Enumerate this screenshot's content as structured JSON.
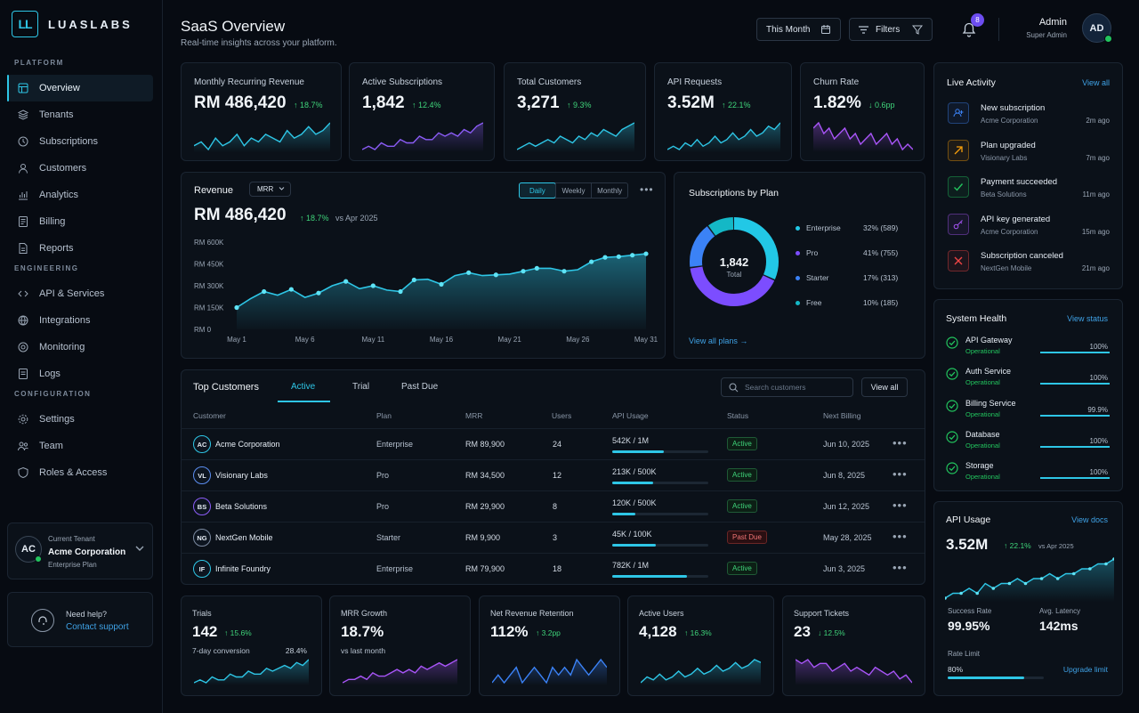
{
  "brand": {
    "mark": "LL",
    "name": "LUASLABS"
  },
  "sidebar": {
    "sections": [
      {
        "label": "PLATFORM",
        "items": [
          {
            "label": "Overview",
            "icon": "overview-icon",
            "active": true
          },
          {
            "label": "Tenants",
            "icon": "layers-icon"
          },
          {
            "label": "Subscriptions",
            "icon": "subscriptions-icon"
          },
          {
            "label": "Customers",
            "icon": "user-icon"
          },
          {
            "label": "Analytics",
            "icon": "analytics-icon"
          },
          {
            "label": "Billing",
            "icon": "billing-icon"
          },
          {
            "label": "Reports",
            "icon": "reports-icon"
          }
        ]
      },
      {
        "label": "ENGINEERING",
        "items": [
          {
            "label": "API & Services",
            "icon": "api-icon"
          },
          {
            "label": "Integrations",
            "icon": "integrations-icon"
          },
          {
            "label": "Monitoring",
            "icon": "monitoring-icon"
          },
          {
            "label": "Logs",
            "icon": "logs-icon"
          }
        ]
      },
      {
        "label": "CONFIGURATION",
        "items": [
          {
            "label": "Settings",
            "icon": "gear-icon"
          },
          {
            "label": "Team",
            "icon": "team-icon"
          },
          {
            "label": "Roles & Access",
            "icon": "shield-icon"
          }
        ]
      }
    ],
    "tenant": {
      "caption": "Current Tenant",
      "initials": "AC",
      "name": "Acme Corporation",
      "plan": "Enterprise Plan"
    },
    "help": {
      "question": "Need help?",
      "link": "Contact support"
    }
  },
  "header": {
    "title": "SaaS Overview",
    "subtitle": "Real-time insights across your platform.",
    "period": "This Month",
    "filters": "Filters",
    "notifications": "8",
    "user": {
      "name": "Admin",
      "role": "Super Admin",
      "initials": "AD"
    }
  },
  "kpis": [
    {
      "title": "Monthly Recurring Revenue",
      "value": "RM 486,420",
      "delta": "18.7%",
      "dir": "up",
      "color": "#2ec6e6",
      "spark": [
        5,
        6,
        4,
        7,
        5,
        6,
        8,
        5,
        7,
        6,
        8,
        7,
        6,
        9,
        7,
        8,
        10,
        8,
        9,
        11
      ]
    },
    {
      "title": "Active Subscriptions",
      "value": "1,842",
      "delta": "12.4%",
      "dir": "up",
      "color": "#8b5cf6",
      "spark": [
        4,
        5,
        4,
        6,
        5,
        5,
        7,
        6,
        6,
        8,
        7,
        7,
        9,
        8,
        9,
        8,
        10,
        9,
        11,
        12
      ]
    },
    {
      "title": "Total Customers",
      "value": "3,271",
      "delta": "9.3%",
      "dir": "up",
      "color": "#2ec6e6",
      "spark": [
        4,
        5,
        6,
        5,
        6,
        7,
        6,
        8,
        7,
        6,
        8,
        7,
        9,
        8,
        10,
        9,
        8,
        10,
        11,
        12
      ]
    },
    {
      "title": "API Requests",
      "value": "3.52M",
      "delta": "22.1%",
      "dir": "up",
      "color": "#2ec6e6",
      "spark": [
        5,
        6,
        5,
        7,
        6,
        8,
        6,
        7,
        9,
        7,
        8,
        10,
        8,
        9,
        11,
        9,
        10,
        12,
        11,
        13
      ]
    },
    {
      "title": "Churn Rate",
      "value": "1.82%",
      "delta": "0.6pp",
      "dir": "down",
      "color": "#a855f7",
      "spark": [
        9,
        10,
        8,
        9,
        7,
        8,
        9,
        7,
        8,
        6,
        7,
        8,
        6,
        7,
        8,
        6,
        7,
        5,
        6,
        5
      ]
    }
  ],
  "revenue": {
    "title": "Revenue",
    "select": "MRR",
    "tabs": [
      "Daily",
      "Weekly",
      "Monthly"
    ],
    "active_tab": "Daily",
    "value": "RM 486,420",
    "delta": "18.7%",
    "compare": "vs Apr 2025"
  },
  "chart_data": {
    "type": "area",
    "x": [
      "May 1",
      "May 2",
      "May 3",
      "May 4",
      "May 5",
      "May 6",
      "May 7",
      "May 8",
      "May 9",
      "May 10",
      "May 11",
      "May 12",
      "May 13",
      "May 14",
      "May 15",
      "May 16",
      "May 17",
      "May 18",
      "May 19",
      "May 20",
      "May 21",
      "May 22",
      "May 23",
      "May 24",
      "May 25",
      "May 26",
      "May 27",
      "May 28",
      "May 29",
      "May 30",
      "May 31"
    ],
    "x_tick_labels": [
      "May 1",
      "May 6",
      "May 11",
      "May 16",
      "May 21",
      "May 26",
      "May 31"
    ],
    "y_tick_labels": [
      "RM 600K",
      "RM 450K",
      "RM 300K",
      "RM 150K",
      "RM 0"
    ],
    "ylim": [
      0,
      600000
    ],
    "values": [
      150000,
      210000,
      260000,
      235000,
      275000,
      220000,
      250000,
      300000,
      330000,
      280000,
      300000,
      270000,
      260000,
      340000,
      345000,
      310000,
      370000,
      390000,
      370000,
      375000,
      380000,
      400000,
      420000,
      420000,
      400000,
      410000,
      465000,
      495000,
      500000,
      510000,
      520000
    ],
    "markers": [
      0,
      2,
      4,
      6,
      8,
      10,
      12,
      13,
      15,
      17,
      19,
      21,
      22,
      24,
      26,
      27,
      28,
      29,
      30
    ],
    "line_color": "#2ec6e6"
  },
  "plans": {
    "title": "Subscriptions by Plan",
    "total": "1,842",
    "total_label": "Total",
    "link": "View all plans",
    "items": [
      {
        "name": "Enterprise",
        "label": "32% (589)",
        "pct": 32,
        "color": "#22c8e6"
      },
      {
        "name": "Pro",
        "label": "41% (755)",
        "pct": 41,
        "color": "#7c4dff"
      },
      {
        "name": "Starter",
        "label": "17% (313)",
        "pct": 17,
        "color": "#3b82f6"
      },
      {
        "name": "Free",
        "label": "10% (185)",
        "pct": 10,
        "color": "#14b8c6"
      }
    ]
  },
  "customers": {
    "title": "Top Customers",
    "tabs": [
      "Active",
      "Trial",
      "Past Due"
    ],
    "search_placeholder": "Search customers",
    "view_all": "View all",
    "columns": [
      "Customer",
      "Plan",
      "MRR",
      "Users",
      "API Usage",
      "Status",
      "Next Billing"
    ],
    "rows": [
      {
        "initials": "AC",
        "name": "Acme Corporation",
        "plan": "Enterprise",
        "mrr": "RM 89,900",
        "users": "24",
        "usage": "542K / 1M",
        "usage_pct": 54,
        "status": "Active",
        "next": "Jun 10, 2025",
        "ring": "#2ec6e6"
      },
      {
        "initials": "VL",
        "name": "Visionary Labs",
        "plan": "Pro",
        "mrr": "RM 34,500",
        "users": "12",
        "usage": "213K / 500K",
        "usage_pct": 43,
        "status": "Active",
        "next": "Jun 8, 2025",
        "ring": "#5b8def"
      },
      {
        "initials": "BS",
        "name": "Beta Solutions",
        "plan": "Pro",
        "mrr": "RM 29,900",
        "users": "8",
        "usage": "120K / 500K",
        "usage_pct": 24,
        "status": "Active",
        "next": "Jun 12, 2025",
        "ring": "#8b5cf6"
      },
      {
        "initials": "NG",
        "name": "NextGen Mobile",
        "plan": "Starter",
        "mrr": "RM 9,900",
        "users": "3",
        "usage": "45K / 100K",
        "usage_pct": 45,
        "status": "Past Due",
        "next": "May 28, 2025",
        "ring": "#7c8aa0"
      },
      {
        "initials": "IF",
        "name": "Infinite Foundry",
        "plan": "Enterprise",
        "mrr": "RM 79,900",
        "users": "18",
        "usage": "782K / 1M",
        "usage_pct": 78,
        "status": "Active",
        "next": "Jun 3, 2025",
        "ring": "#2ec6e6"
      }
    ]
  },
  "bottom_kpis": [
    {
      "title": "Trials",
      "value": "142",
      "delta": "15.6%",
      "dir": "up",
      "sub": "7-day conversion",
      "sub_value": "28.4%",
      "color": "#2ec6e6",
      "spark": [
        3,
        4,
        3,
        5,
        4,
        4,
        6,
        5,
        5,
        7,
        6,
        6,
        8,
        7,
        8,
        9,
        8,
        10,
        9,
        11
      ]
    },
    {
      "title": "MRR Growth",
      "value": "18.7%",
      "delta": "",
      "sub": "vs last month",
      "color": "#a855f7",
      "spark": [
        3,
        4,
        4,
        5,
        4,
        6,
        5,
        5,
        6,
        7,
        6,
        7,
        6,
        8,
        7,
        8,
        9,
        8,
        9,
        10
      ]
    },
    {
      "title": "Net Revenue Retention",
      "value": "112%",
      "delta": "3.2pp",
      "dir": "up",
      "color": "#3b82f6",
      "spark": [
        5,
        6,
        5,
        6,
        7,
        5,
        6,
        7,
        6,
        5,
        7,
        6,
        7,
        6,
        8,
        7,
        6,
        7,
        8,
        7
      ]
    },
    {
      "title": "Active Users",
      "value": "4,128",
      "delta": "16.3%",
      "dir": "up",
      "color": "#2ec6e6",
      "spark": [
        4,
        6,
        5,
        7,
        5,
        6,
        8,
        6,
        7,
        9,
        7,
        8,
        10,
        8,
        9,
        11,
        9,
        10,
        12,
        11
      ]
    },
    {
      "title": "Support Tickets",
      "value": "23",
      "delta": "12.5%",
      "dir": "down",
      "color": "#a855f7",
      "spark": [
        9,
        8,
        9,
        7,
        8,
        8,
        6,
        7,
        8,
        6,
        7,
        6,
        5,
        7,
        6,
        5,
        6,
        4,
        5,
        3
      ]
    }
  ],
  "activity": {
    "title": "Live Activity",
    "link": "View all",
    "items": [
      {
        "title": "New subscription",
        "sub": "Acme Corporation",
        "time": "2m ago",
        "icon": "user-add-icon",
        "color": "#3b82f6"
      },
      {
        "title": "Plan upgraded",
        "sub": "Visionary Labs",
        "time": "7m ago",
        "icon": "arrow-up-right-icon",
        "color": "#f59e0b"
      },
      {
        "title": "Payment succeeded",
        "sub": "Beta Solutions",
        "time": "11m ago",
        "icon": "check-icon",
        "color": "#22c55e"
      },
      {
        "title": "API key generated",
        "sub": "Acme Corporation",
        "time": "15m ago",
        "icon": "key-icon",
        "color": "#a855f7"
      },
      {
        "title": "Subscription canceled",
        "sub": "NextGen Mobile",
        "time": "21m ago",
        "icon": "x-icon",
        "color": "#ef4444"
      }
    ]
  },
  "health": {
    "title": "System Health",
    "link": "View status",
    "items": [
      {
        "name": "API Gateway",
        "status": "Operational",
        "pct": "100%"
      },
      {
        "name": "Auth Service",
        "status": "Operational",
        "pct": "100%"
      },
      {
        "name": "Billing Service",
        "status": "Operational",
        "pct": "99.9%"
      },
      {
        "name": "Database",
        "status": "Operational",
        "pct": "100%"
      },
      {
        "name": "Storage",
        "status": "Operational",
        "pct": "100%"
      }
    ]
  },
  "api_usage": {
    "title": "API Usage",
    "link": "View docs",
    "value": "3.52M",
    "delta": "22.1%",
    "compare": "vs Apr 2025",
    "success_label": "Success Rate",
    "success": "99.95%",
    "latency_label": "Avg. Latency",
    "latency": "142ms",
    "limit_label": "Rate Limit",
    "limit": "80%",
    "limit_pct": 80,
    "upgrade": "Upgrade limit",
    "spark": [
      3,
      4,
      4,
      5,
      4,
      6,
      5,
      6,
      6,
      7,
      6,
      7,
      7,
      8,
      7,
      8,
      8,
      9,
      9,
      10,
      10,
      11
    ]
  }
}
